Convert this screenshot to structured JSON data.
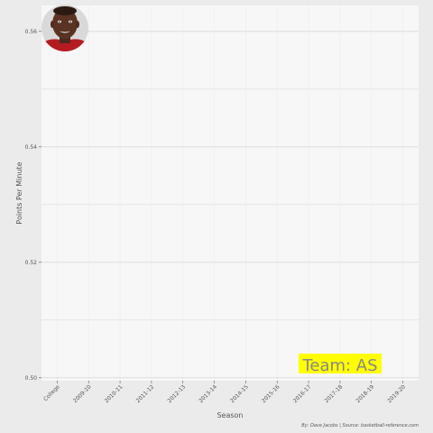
{
  "chart_data": {
    "type": "line",
    "title": "",
    "xlabel": "Season",
    "ylabel": "Points Per Minute",
    "categories": [
      "College",
      "2009-10",
      "2010-11",
      "2011-12",
      "2012-13",
      "2013-14",
      "2014-15",
      "2015-16",
      "2016-17",
      "2017-18",
      "2018-19",
      "2019-20"
    ],
    "series": [],
    "yticks": [
      "0.50",
      "0.52",
      "0.54",
      "0.56"
    ],
    "ylim": [
      0.4995,
      0.5645
    ],
    "grid": true,
    "legend": "none",
    "annotation": "Team: AS",
    "caption": "By: Dave Jacobs | Source: basketball-reference.com"
  },
  "colors": {
    "panel": "#f7f7f7",
    "background": "#ebebeb",
    "grid_major": "#d9d9d9",
    "grid_minor": "#efefef",
    "annotation_bg": "#ffff00",
    "annotation_text": "#888888"
  },
  "player_photo": "player-headshot"
}
